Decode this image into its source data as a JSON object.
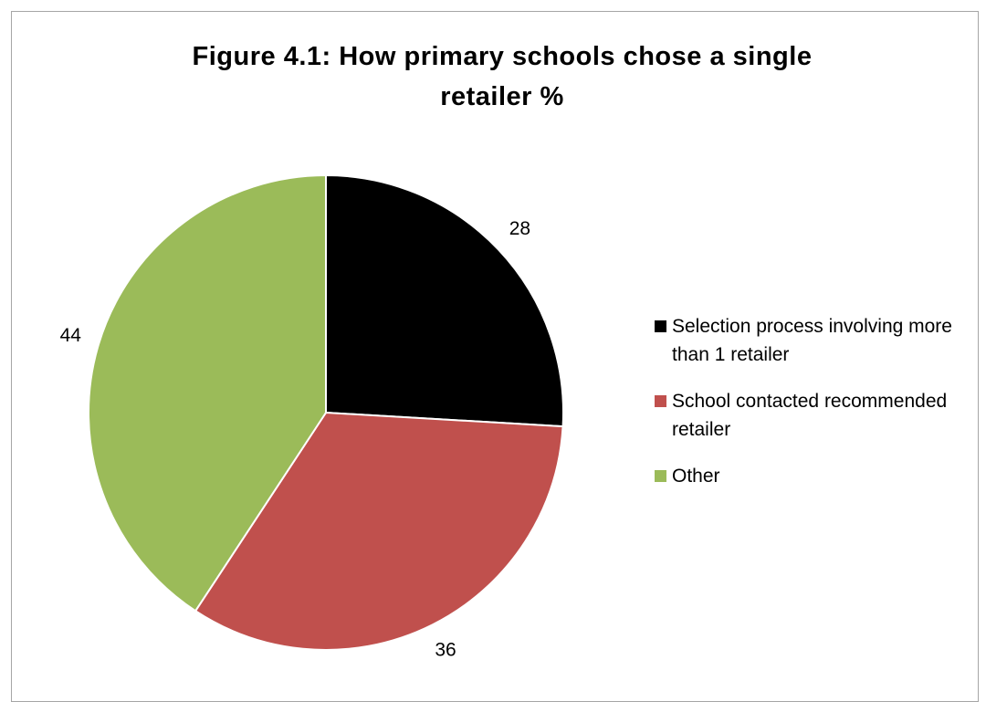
{
  "chart_data": {
    "type": "pie",
    "title_lines": [
      "Figure 4.1: How primary schools chose a single",
      "retailer %"
    ],
    "categories": [
      "Selection process involving more than 1 retailer",
      "School contacted recommended retailer",
      "Other"
    ],
    "values": [
      28,
      36,
      44
    ],
    "data_labels": [
      "28",
      "36",
      "44"
    ],
    "colors": [
      "#000000",
      "#c0504d",
      "#9bbb59"
    ],
    "legend_placement": "right",
    "start_angle": "12 o'clock",
    "direction": "clockwise"
  }
}
